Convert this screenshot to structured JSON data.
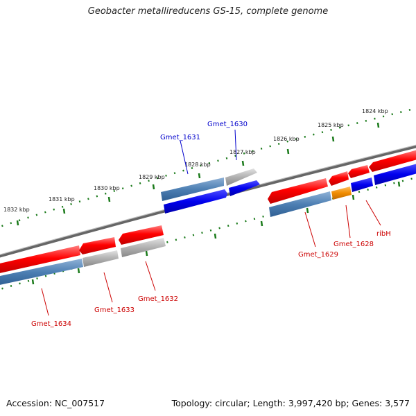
{
  "title": "Geobacter metallireducens GS-15, complete genome",
  "footer": {
    "accession": "Accession: NC_007517",
    "stats": "Topology: circular; Length: 3,997,420 bp; Genes: 3,577"
  },
  "kbp_labels": [
    "1824 kbp",
    "1825 kbp",
    "1826 kbp",
    "1827 kbp",
    "1828 kbp",
    "1829 kbp",
    "1830 kbp",
    "1831 kbp",
    "1832 kbp"
  ],
  "gene_labels": {
    "gmet_1630": "Gmet_1630",
    "gmet_1631": "Gmet_1631",
    "ribH": "ribH",
    "gmet_1628": "Gmet_1628",
    "gmet_1629": "Gmet_1629",
    "gmet_1632": "Gmet_1632",
    "gmet_1633": "Gmet_1633",
    "gmet_1634": "Gmet_1634"
  },
  "colors": {
    "cds": "#e60000",
    "gene_steel": "#4d7fb3",
    "gene_grey": "#a8a8a8",
    "gene_blue": "#0000e6",
    "gene_orange": "#f08c00",
    "tick": "#1a7a1a",
    "backbone": "#777777",
    "forward_label": "#0000cc",
    "reverse_label": "#cc0000"
  }
}
